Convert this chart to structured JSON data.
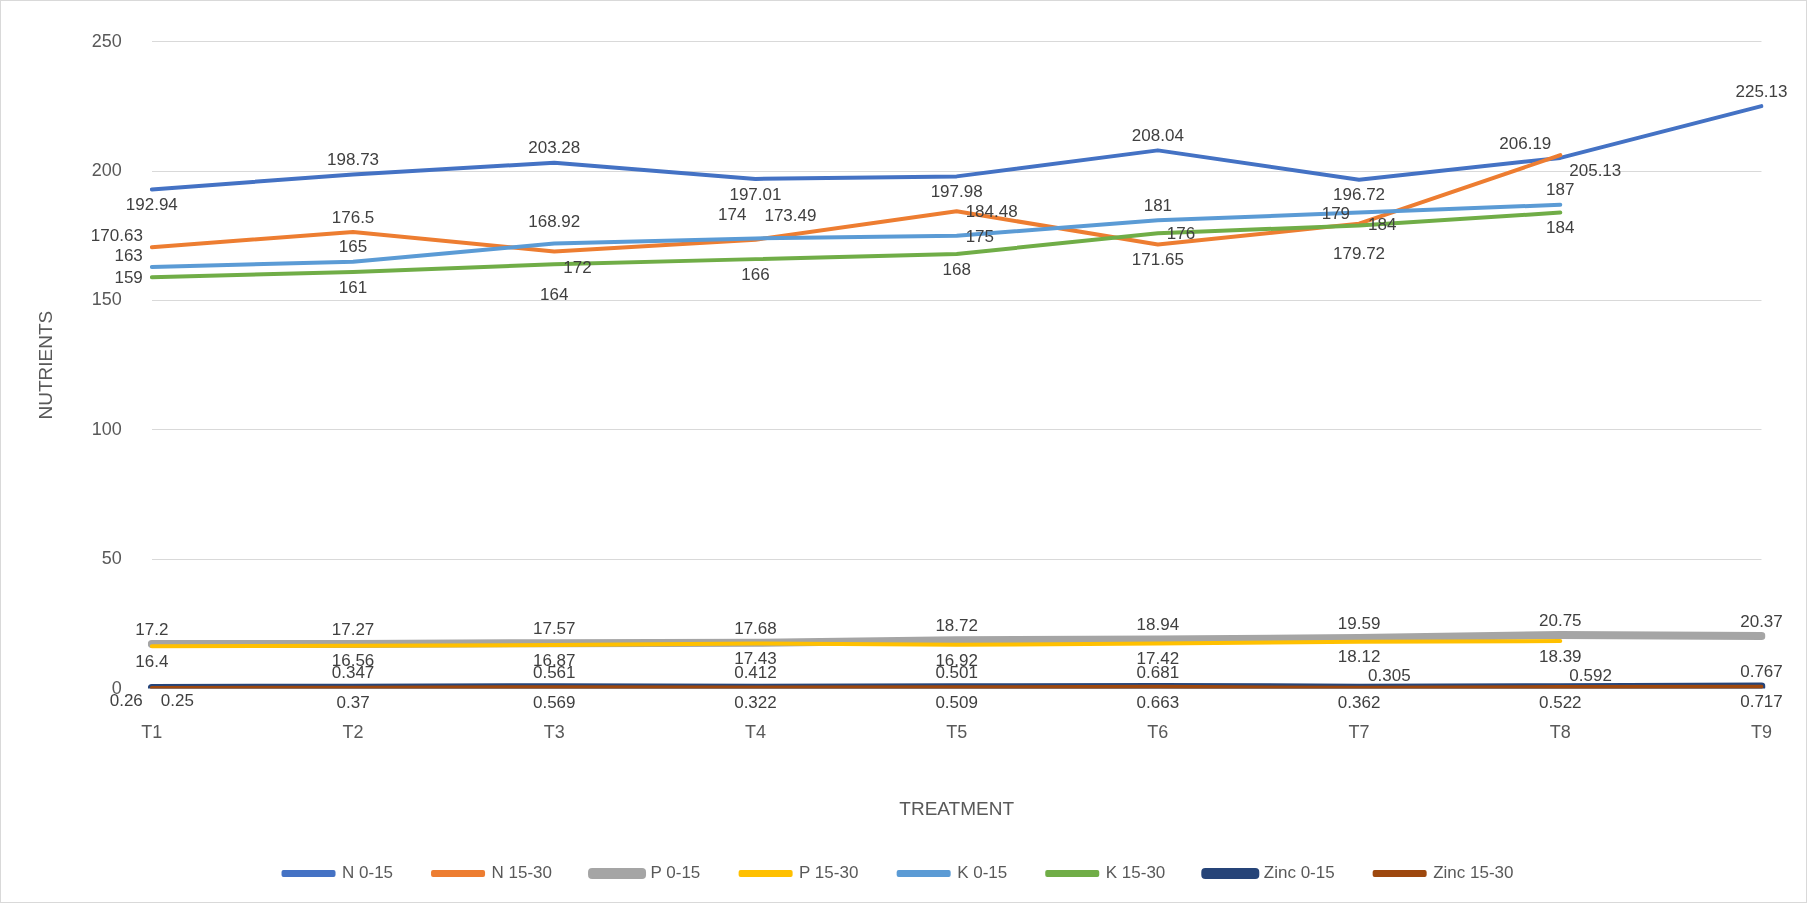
{
  "chart_data": {
    "type": "line",
    "xlabel": "TREATMENT",
    "ylabel": "NUTRIENTS",
    "categories": [
      "T1",
      "T2",
      "T3",
      "T4",
      "T5",
      "T6",
      "T7",
      "T8",
      "T9"
    ],
    "ylim": [
      0,
      250
    ],
    "yticks": [
      0,
      50,
      100,
      150,
      200,
      250
    ],
    "grid": "y",
    "legend": "bottom",
    "marker": "none",
    "data_labels": true,
    "series": [
      {
        "name": "N 0-15",
        "color": "#4472c4",
        "values": [
          192.94,
          198.73,
          203.28,
          197.01,
          197.98,
          208.04,
          196.72,
          205.13,
          225.13
        ]
      },
      {
        "name": "N 15-30",
        "color": "#ed7d31",
        "values": [
          170.63,
          176.5,
          168.92,
          173.49,
          184.48,
          171.65,
          179.72,
          206.19,
          null
        ]
      },
      {
        "name": "P 0-15",
        "color": "#a5a5a5",
        "values": [
          17.2,
          17.27,
          17.57,
          17.68,
          18.72,
          18.94,
          19.59,
          20.75,
          20.37
        ]
      },
      {
        "name": "P 15-30",
        "color": "#ffc000",
        "values": [
          16.4,
          16.56,
          16.87,
          17.43,
          16.92,
          17.42,
          18.12,
          18.39,
          null
        ]
      },
      {
        "name": "K 0-15",
        "color": "#5b9bd5",
        "values": [
          163,
          165,
          172,
          174,
          175,
          181,
          184,
          187,
          null
        ]
      },
      {
        "name": "K 15-30",
        "color": "#70ad47",
        "values": [
          159,
          161,
          164,
          166,
          168,
          176,
          179,
          184,
          null
        ]
      },
      {
        "name": "Zinc 0-15",
        "color": "#264478",
        "values": [
          0.25,
          0.37,
          0.569,
          0.322,
          0.509,
          0.663,
          0.362,
          0.522,
          0.767
        ]
      },
      {
        "name": "Zinc 15-30",
        "color": "#9e480e",
        "values": [
          0.26,
          0.347,
          0.561,
          0.412,
          0.501,
          0.681,
          0.305,
          0.592,
          0.717
        ]
      }
    ]
  }
}
